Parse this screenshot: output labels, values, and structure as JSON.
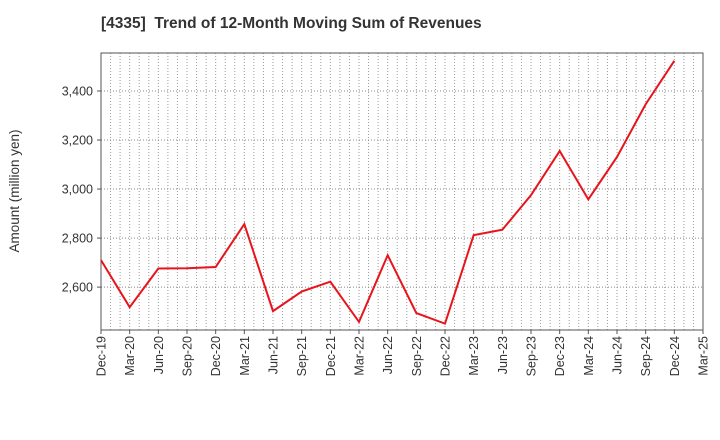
{
  "chart_data": {
    "type": "line",
    "title": "[4335]  Trend of 12-Month Moving Sum of Revenues",
    "xlabel": "",
    "ylabel": "Amount (million yen)",
    "x_tick_labels": [
      "Dec-19",
      "Mar-20",
      "Jun-20",
      "Sep-20",
      "Dec-20",
      "Mar-21",
      "Jun-21",
      "Sep-21",
      "Dec-21",
      "Mar-22",
      "Jun-22",
      "Sep-22",
      "Dec-22",
      "Mar-23",
      "Jun-23",
      "Sep-23",
      "Dec-23",
      "Mar-24",
      "Jun-24",
      "Sep-24",
      "Dec-24",
      "Mar-25"
    ],
    "y_ticks": [
      2600,
      2800,
      3000,
      3200,
      3400
    ],
    "y_tick_labels": [
      "2,600",
      "2,800",
      "3,000",
      "3,200",
      "3,400"
    ],
    "ylim": [
      2425,
      3555
    ],
    "grid": true,
    "series": [
      {
        "color": "#e8141c",
        "x": [
          "Dec-19",
          "Mar-20",
          "Jun-20",
          "Sep-20",
          "Dec-20",
          "Mar-21",
          "Jun-21",
          "Sep-21",
          "Dec-21",
          "Mar-22",
          "Jun-22",
          "Sep-22",
          "Dec-22",
          "Mar-23",
          "Jun-23",
          "Sep-23",
          "Dec-23",
          "Mar-24",
          "Jun-24",
          "Sep-24",
          "Dec-24"
        ],
        "values": [
          2710,
          2518,
          2676,
          2677,
          2682,
          2857,
          2502,
          2582,
          2622,
          2458,
          2730,
          2494,
          2451,
          2812,
          2834,
          2975,
          3155,
          2958,
          3131,
          3346,
          3523
        ]
      }
    ]
  }
}
